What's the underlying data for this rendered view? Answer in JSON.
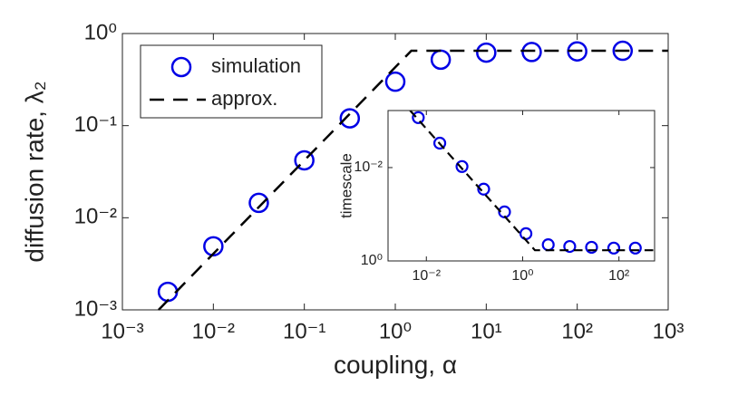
{
  "chart_data": [
    {
      "type": "scatter",
      "xlabel": "coupling, α",
      "ylabel": "diffusion rate, λ₂",
      "xscale": "log",
      "yscale": "log",
      "xlim": [
        0.001,
        1000
      ],
      "ylim": [
        0.001,
        1
      ],
      "xticks": [
        {
          "value": 0.001,
          "label": "10⁻³"
        },
        {
          "value": 0.01,
          "label": "10⁻²"
        },
        {
          "value": 0.1,
          "label": "10⁻¹"
        },
        {
          "value": 1,
          "label": "10⁰"
        },
        {
          "value": 10,
          "label": "10¹"
        },
        {
          "value": 100,
          "label": "10²"
        },
        {
          "value": 1000,
          "label": "10³"
        }
      ],
      "yticks": [
        {
          "value": 0.001,
          "label": "10⁻³"
        },
        {
          "value": 0.01,
          "label": "10⁻²"
        },
        {
          "value": 0.1,
          "label": "10⁻¹"
        },
        {
          "value": 1,
          "label": "10⁰"
        }
      ],
      "legend": "upper left",
      "series": [
        {
          "name": "simulation",
          "color": "#0000e6",
          "mode": "markers",
          "x": [
            0.00316,
            0.01,
            0.0316,
            0.1,
            0.316,
            1,
            3.16,
            10,
            31.6,
            100,
            316
          ],
          "values": [
            0.00157,
            0.0049,
            0.0145,
            0.042,
            0.12,
            0.3,
            0.52,
            0.62,
            0.63,
            0.64,
            0.65
          ]
        },
        {
          "name": "approx.",
          "color": "#000000",
          "mode": "dashed",
          "x": [
            0.0025,
            1.5,
            1000
          ],
          "values": [
            0.001,
            0.65,
            0.65
          ]
        }
      ]
    },
    {
      "type": "scatter",
      "ylabel": "timescale",
      "xscale": "log",
      "yscale": "log",
      "xlim": [
        0.0016,
        550
      ],
      "ylim": [
        1,
        0.0006
      ],
      "xticks": [
        {
          "value": 0.01,
          "label": "10⁻²"
        },
        {
          "value": 1,
          "label": "10⁰"
        },
        {
          "value": 100,
          "label": "10²"
        }
      ],
      "yticks": [
        {
          "value": 1,
          "label": "10⁰"
        },
        {
          "value": 0.01,
          "label": "10⁻²"
        }
      ],
      "series": [
        {
          "color": "#0000e6",
          "mode": "markers",
          "x": [
            0.0068,
            0.019,
            0.055,
            0.155,
            0.42,
            1.17,
            3.4,
            9.5,
            27,
            78,
            219
          ],
          "values": [
            0.00085,
            0.003,
            0.0095,
            0.029,
            0.089,
            0.26,
            0.45,
            0.49,
            0.51,
            0.53,
            0.53
          ]
        },
        {
          "color": "#000000",
          "mode": "dashed",
          "x": [
            0.0046,
            1.8,
            550
          ],
          "values": [
            0.0006,
            0.59,
            0.59
          ]
        }
      ]
    }
  ]
}
